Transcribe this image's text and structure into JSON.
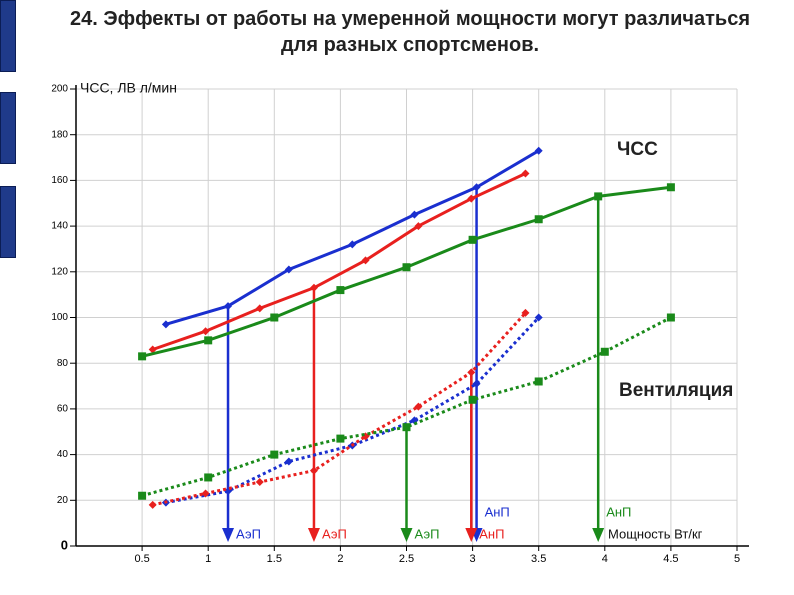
{
  "title": "24. Эффекты от работы на умеренной мощности могут различаться для разных спортсменов.",
  "chart_data": {
    "type": "line",
    "y_label": "ЧСС, ЛВ л/мин",
    "x_label": "Мощность Вт/кг",
    "annotations": [
      "ЧСС",
      "Вентиляция"
    ],
    "xlim": [
      0,
      5
    ],
    "xticks": [
      0.5,
      1,
      1.5,
      2,
      2.5,
      3,
      3.5,
      4,
      4.5,
      5
    ],
    "ylim": [
      0,
      200
    ],
    "yticks": [
      0,
      20,
      40,
      60,
      80,
      100,
      120,
      140,
      160,
      180,
      200
    ],
    "grid": true,
    "series": [
      {
        "color": "#1a2fcf",
        "dashed": false,
        "marker": "diamond",
        "x": [
          0.68,
          1.15,
          1.61,
          2.09,
          2.56,
          3.03,
          3.5
        ],
        "values": [
          97,
          105,
          121,
          132,
          145,
          157,
          173
        ]
      },
      {
        "color": "#e8201e",
        "dashed": false,
        "marker": "diamond",
        "x": [
          0.58,
          0.98,
          1.39,
          1.8,
          2.19,
          2.59,
          2.99,
          3.4
        ],
        "values": [
          86,
          94,
          104,
          113,
          125,
          140,
          152,
          163
        ]
      },
      {
        "color": "#1a8a1a",
        "dashed": false,
        "marker": "square",
        "x": [
          0.5,
          1,
          1.5,
          2,
          2.5,
          3,
          3.5,
          3.95,
          4.5
        ],
        "values": [
          83,
          90,
          100,
          112,
          122,
          134,
          143,
          153,
          157
        ]
      },
      {
        "color": "#1a2fcf",
        "dashed": true,
        "marker": "diamond",
        "x": [
          0.68,
          1.15,
          1.61,
          2.09,
          2.56,
          3.03,
          3.5
        ],
        "values": [
          19,
          24,
          37,
          44,
          55,
          71,
          100
        ]
      },
      {
        "color": "#e8201e",
        "dashed": true,
        "marker": "diamond",
        "x": [
          0.58,
          0.98,
          1.39,
          1.8,
          2.19,
          2.59,
          2.99,
          3.4
        ],
        "values": [
          18,
          23,
          28,
          33,
          48,
          61,
          76,
          102
        ]
      },
      {
        "color": "#1a8a1a",
        "dashed": true,
        "marker": "square",
        "x": [
          0.5,
          1,
          1.5,
          2,
          2.5,
          3,
          3.5,
          4,
          4.5
        ],
        "values": [
          22,
          30,
          40,
          47,
          52,
          64,
          72,
          85,
          100
        ]
      }
    ],
    "thresholds": [
      {
        "label": "АэП",
        "color": "#1a2fcf",
        "x": 1.15,
        "from": 105
      },
      {
        "label": "АэП",
        "color": "#e8201e",
        "x": 1.8,
        "from": 113
      },
      {
        "label": "АэП",
        "color": "#1a8a1a",
        "x": 2.5,
        "from": 52
      },
      {
        "label": "АнП",
        "color": "#1a2fcf",
        "x": 3.03,
        "from": 157
      },
      {
        "label": "АнП",
        "color": "#e8201e",
        "x": 2.99,
        "from": 76
      },
      {
        "label": "АнП",
        "color": "#1a8a1a",
        "x": 3.95,
        "from": 153
      }
    ]
  }
}
